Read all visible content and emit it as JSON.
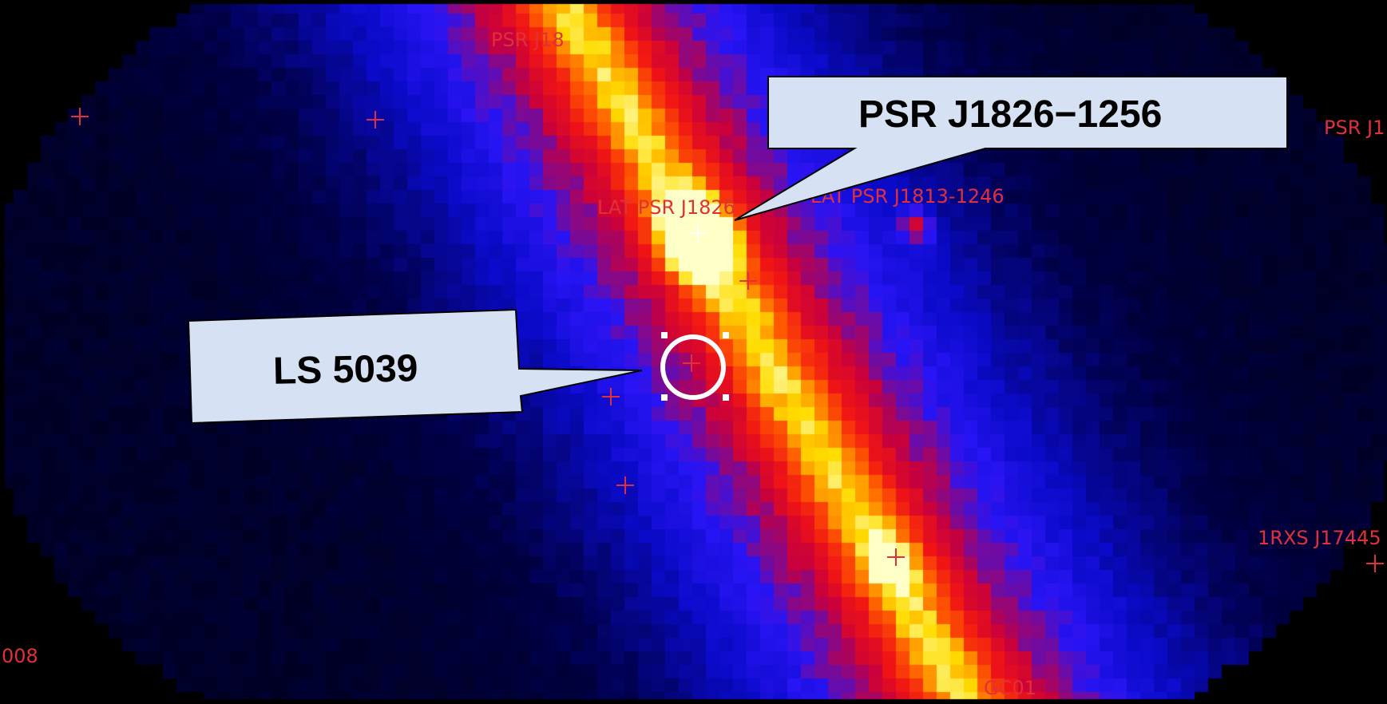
{
  "callouts": {
    "pulsar": "PSR J1826−1256",
    "binary": "LS 5039"
  },
  "source_labels": [
    "PSR J18",
    "PSR J1",
    "LAT PSR J1826",
    "LAT PSR J1813-1246",
    "1RXS J17445",
    "008",
    "GC01"
  ],
  "colors": {
    "label_red": "#e0303a",
    "callout_fill": "#d6e2f3"
  }
}
